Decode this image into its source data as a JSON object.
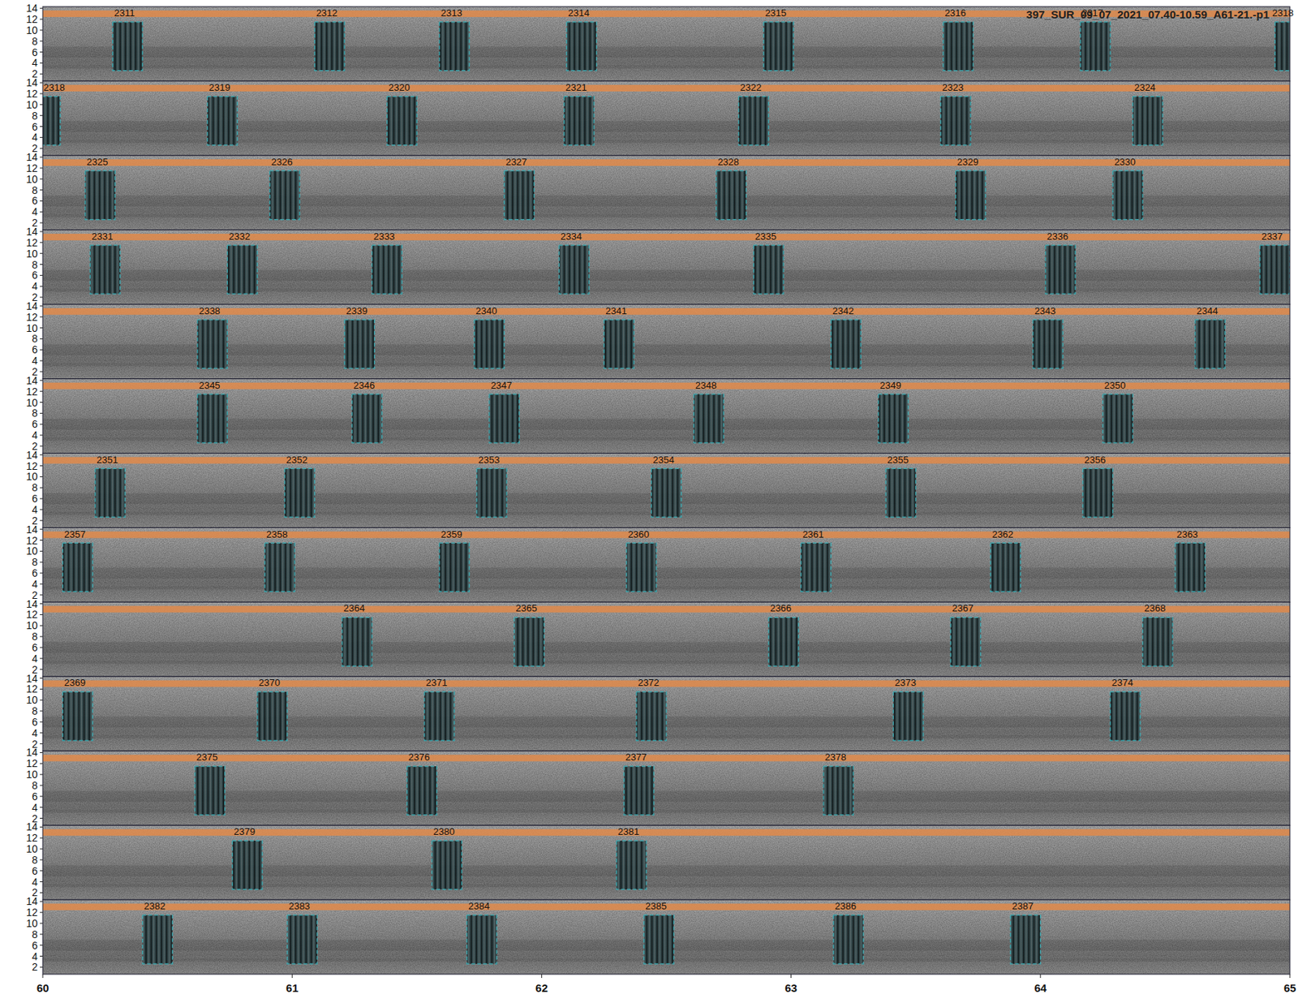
{
  "chart_data": {
    "type": "spectrogram",
    "title": "397_SUR_09_07_2021_07.40-10.59_A61-21.-p1",
    "xlim": [
      60,
      65
    ],
    "xticks": [
      60,
      61,
      62,
      63,
      64,
      65
    ],
    "ylim": [
      0.7,
      14.3
    ],
    "yticks": [
      2,
      4,
      6,
      8,
      10,
      12,
      14
    ],
    "highlight_band": [
      12.4,
      13.6
    ],
    "color": "#3aa8b0",
    "rows": [
      {
        "boxes": [
          {
            "label": "2311",
            "start": 60.28,
            "end": 60.4,
            "low": 2.6,
            "high": 11.5
          },
          {
            "label": "2312",
            "start": 61.09,
            "end": 61.21,
            "low": 2.6,
            "high": 11.5
          },
          {
            "label": "2313",
            "start": 61.59,
            "end": 61.71,
            "low": 2.6,
            "high": 11.5
          },
          {
            "label": "2314",
            "start": 62.1,
            "end": 62.22,
            "low": 2.6,
            "high": 11.5
          },
          {
            "label": "2315",
            "start": 62.89,
            "end": 63.01,
            "low": 2.6,
            "high": 11.5
          },
          {
            "label": "2316",
            "start": 63.61,
            "end": 63.73,
            "low": 2.6,
            "high": 11.5
          },
          {
            "label": "2317",
            "start": 64.16,
            "end": 64.28,
            "low": 2.6,
            "high": 11.5
          },
          {
            "label": "2318",
            "start": 64.94,
            "end": 65.06,
            "low": 2.6,
            "high": 11.5
          }
        ]
      },
      {
        "boxes": [
          {
            "label": "2318",
            "start": 59.95,
            "end": 60.07,
            "low": 2.6,
            "high": 11.5
          },
          {
            "label": "2319",
            "start": 60.66,
            "end": 60.78,
            "low": 2.6,
            "high": 11.5
          },
          {
            "label": "2320",
            "start": 61.38,
            "end": 61.5,
            "low": 2.6,
            "high": 11.5
          },
          {
            "label": "2321",
            "start": 62.09,
            "end": 62.21,
            "low": 2.6,
            "high": 11.5
          },
          {
            "label": "2322",
            "start": 62.79,
            "end": 62.91,
            "low": 2.6,
            "high": 11.5
          },
          {
            "label": "2323",
            "start": 63.6,
            "end": 63.72,
            "low": 2.6,
            "high": 11.5
          },
          {
            "label": "2324",
            "start": 64.37,
            "end": 64.49,
            "low": 2.6,
            "high": 11.5
          }
        ]
      },
      {
        "boxes": [
          {
            "label": "2325",
            "start": 60.17,
            "end": 60.29,
            "low": 2.6,
            "high": 11.5
          },
          {
            "label": "2326",
            "start": 60.91,
            "end": 61.03,
            "low": 2.6,
            "high": 11.5
          },
          {
            "label": "2327",
            "start": 61.85,
            "end": 61.97,
            "low": 2.6,
            "high": 11.5
          },
          {
            "label": "2328",
            "start": 62.7,
            "end": 62.82,
            "low": 2.6,
            "high": 11.5
          },
          {
            "label": "2329",
            "start": 63.66,
            "end": 63.78,
            "low": 2.6,
            "high": 11.5
          },
          {
            "label": "2330",
            "start": 64.29,
            "end": 64.41,
            "low": 2.6,
            "high": 11.5
          }
        ]
      },
      {
        "boxes": [
          {
            "label": "2331",
            "start": 60.19,
            "end": 60.31,
            "low": 2.6,
            "high": 11.5
          },
          {
            "label": "2332",
            "start": 60.74,
            "end": 60.86,
            "low": 2.6,
            "high": 11.5
          },
          {
            "label": "2333",
            "start": 61.32,
            "end": 61.44,
            "low": 2.6,
            "high": 11.5
          },
          {
            "label": "2334",
            "start": 62.07,
            "end": 62.19,
            "low": 2.6,
            "high": 11.5
          },
          {
            "label": "2335",
            "start": 62.85,
            "end": 62.97,
            "low": 2.6,
            "high": 11.5
          },
          {
            "label": "2336",
            "start": 64.02,
            "end": 64.14,
            "low": 2.6,
            "high": 11.5
          },
          {
            "label": "2337",
            "start": 64.88,
            "end": 65.0,
            "low": 2.6,
            "high": 11.5
          }
        ]
      },
      {
        "boxes": [
          {
            "label": "2338",
            "start": 60.62,
            "end": 60.74,
            "low": 2.6,
            "high": 11.5
          },
          {
            "label": "2339",
            "start": 61.21,
            "end": 61.33,
            "low": 2.6,
            "high": 11.5
          },
          {
            "label": "2340",
            "start": 61.73,
            "end": 61.85,
            "low": 2.6,
            "high": 11.5
          },
          {
            "label": "2341",
            "start": 62.25,
            "end": 62.37,
            "low": 2.6,
            "high": 11.5
          },
          {
            "label": "2342",
            "start": 63.16,
            "end": 63.28,
            "low": 2.6,
            "high": 11.5
          },
          {
            "label": "2343",
            "start": 63.97,
            "end": 64.09,
            "low": 2.6,
            "high": 11.5
          },
          {
            "label": "2344",
            "start": 64.62,
            "end": 64.74,
            "low": 2.6,
            "high": 11.5
          }
        ]
      },
      {
        "boxes": [
          {
            "label": "2345",
            "start": 60.62,
            "end": 60.74,
            "low": 2.6,
            "high": 11.5
          },
          {
            "label": "2346",
            "start": 61.24,
            "end": 61.36,
            "low": 2.6,
            "high": 11.5
          },
          {
            "label": "2347",
            "start": 61.79,
            "end": 61.91,
            "low": 2.6,
            "high": 11.5
          },
          {
            "label": "2348",
            "start": 62.61,
            "end": 62.73,
            "low": 2.6,
            "high": 11.5
          },
          {
            "label": "2349",
            "start": 63.35,
            "end": 63.47,
            "low": 2.6,
            "high": 11.5
          },
          {
            "label": "2350",
            "start": 64.25,
            "end": 64.37,
            "low": 2.6,
            "high": 11.5
          }
        ]
      },
      {
        "boxes": [
          {
            "label": "2351",
            "start": 60.21,
            "end": 60.33,
            "low": 2.6,
            "high": 11.5
          },
          {
            "label": "2352",
            "start": 60.97,
            "end": 61.09,
            "low": 2.6,
            "high": 11.5
          },
          {
            "label": "2353",
            "start": 61.74,
            "end": 61.86,
            "low": 2.6,
            "high": 11.5
          },
          {
            "label": "2354",
            "start": 62.44,
            "end": 62.56,
            "low": 2.6,
            "high": 11.5
          },
          {
            "label": "2355",
            "start": 63.38,
            "end": 63.5,
            "low": 2.6,
            "high": 11.5
          },
          {
            "label": "2356",
            "start": 64.17,
            "end": 64.29,
            "low": 2.6,
            "high": 11.5
          }
        ]
      },
      {
        "boxes": [
          {
            "label": "2357",
            "start": 60.08,
            "end": 60.2,
            "low": 2.6,
            "high": 11.5
          },
          {
            "label": "2358",
            "start": 60.89,
            "end": 61.01,
            "low": 2.6,
            "high": 11.5
          },
          {
            "label": "2359",
            "start": 61.59,
            "end": 61.71,
            "low": 2.6,
            "high": 11.5
          },
          {
            "label": "2360",
            "start": 62.34,
            "end": 62.46,
            "low": 2.6,
            "high": 11.5
          },
          {
            "label": "2361",
            "start": 63.04,
            "end": 63.16,
            "low": 2.6,
            "high": 11.5
          },
          {
            "label": "2362",
            "start": 63.8,
            "end": 63.92,
            "low": 2.6,
            "high": 11.5
          },
          {
            "label": "2363",
            "start": 64.54,
            "end": 64.66,
            "low": 2.6,
            "high": 11.5
          }
        ]
      },
      {
        "boxes": [
          {
            "label": "2364",
            "start": 61.2,
            "end": 61.32,
            "low": 2.6,
            "high": 11.5
          },
          {
            "label": "2365",
            "start": 61.89,
            "end": 62.01,
            "low": 2.6,
            "high": 11.5
          },
          {
            "label": "2366",
            "start": 62.91,
            "end": 63.03,
            "low": 2.6,
            "high": 11.5
          },
          {
            "label": "2367",
            "start": 63.64,
            "end": 63.76,
            "low": 2.6,
            "high": 11.5
          },
          {
            "label": "2368",
            "start": 64.41,
            "end": 64.53,
            "low": 2.6,
            "high": 11.5
          }
        ]
      },
      {
        "boxes": [
          {
            "label": "2369",
            "start": 60.08,
            "end": 60.2,
            "low": 2.6,
            "high": 11.5
          },
          {
            "label": "2370",
            "start": 60.86,
            "end": 60.98,
            "low": 2.6,
            "high": 11.5
          },
          {
            "label": "2371",
            "start": 61.53,
            "end": 61.65,
            "low": 2.6,
            "high": 11.5
          },
          {
            "label": "2372",
            "start": 62.38,
            "end": 62.5,
            "low": 2.6,
            "high": 11.5
          },
          {
            "label": "2373",
            "start": 63.41,
            "end": 63.53,
            "low": 2.6,
            "high": 11.5
          },
          {
            "label": "2374",
            "start": 64.28,
            "end": 64.4,
            "low": 2.6,
            "high": 11.5
          }
        ]
      },
      {
        "boxes": [
          {
            "label": "2375",
            "start": 60.61,
            "end": 60.73,
            "low": 2.6,
            "high": 11.5
          },
          {
            "label": "2376",
            "start": 61.46,
            "end": 61.58,
            "low": 2.6,
            "high": 11.5
          },
          {
            "label": "2377",
            "start": 62.33,
            "end": 62.45,
            "low": 2.6,
            "high": 11.5
          },
          {
            "label": "2378",
            "start": 63.13,
            "end": 63.25,
            "low": 2.6,
            "high": 11.5
          }
        ]
      },
      {
        "boxes": [
          {
            "label": "2379",
            "start": 60.76,
            "end": 60.88,
            "low": 2.6,
            "high": 11.5
          },
          {
            "label": "2380",
            "start": 61.56,
            "end": 61.68,
            "low": 2.6,
            "high": 11.5
          },
          {
            "label": "2381",
            "start": 62.3,
            "end": 62.42,
            "low": 2.6,
            "high": 11.5
          }
        ]
      },
      {
        "boxes": [
          {
            "label": "2382",
            "start": 60.4,
            "end": 60.52,
            "low": 2.6,
            "high": 11.5
          },
          {
            "label": "2383",
            "start": 60.98,
            "end": 61.1,
            "low": 2.6,
            "high": 11.5
          },
          {
            "label": "2384",
            "start": 61.7,
            "end": 61.82,
            "low": 2.6,
            "high": 11.5
          },
          {
            "label": "2385",
            "start": 62.41,
            "end": 62.53,
            "low": 2.6,
            "high": 11.5
          },
          {
            "label": "2386",
            "start": 63.17,
            "end": 63.29,
            "low": 2.6,
            "high": 11.5
          },
          {
            "label": "2387",
            "start": 63.88,
            "end": 64.0,
            "low": 2.6,
            "high": 11.5
          }
        ]
      }
    ]
  }
}
